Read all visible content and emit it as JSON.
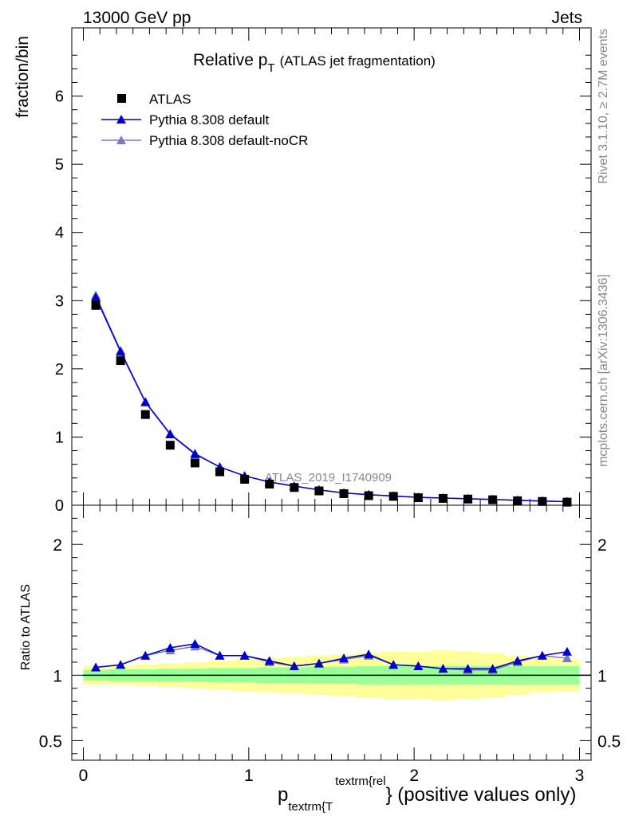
{
  "header": {
    "energy_label": "13000 GeV pp",
    "process_label": "Jets"
  },
  "side_labels": {
    "rivet": "Rivet 3.1.10, ≥ 2.7M events",
    "mcplots": "mcplots.cern.ch [arXiv:1306.3436]"
  },
  "watermark": "ATLAS_2019_I1740909",
  "chart_data": [
    {
      "type": "line",
      "title_main": "Relative p",
      "title_sub": "T",
      "title_rest": "(ATLAS jet fragmentation)",
      "ylabel": "fraction/bin",
      "xlim": [
        -0.07,
        3.07
      ],
      "ylim": [
        0,
        7
      ],
      "y_ticks": [
        0,
        1,
        2,
        3,
        4,
        5,
        6
      ],
      "x": [
        0.075,
        0.225,
        0.375,
        0.525,
        0.675,
        0.825,
        0.975,
        1.125,
        1.275,
        1.425,
        1.575,
        1.725,
        1.875,
        2.025,
        2.175,
        2.325,
        2.475,
        2.625,
        2.775,
        2.925
      ],
      "series": [
        {
          "name": "ATLAS",
          "marker": "square",
          "color": "#000000",
          "values": [
            2.93,
            2.12,
            1.33,
            0.88,
            0.62,
            0.49,
            0.38,
            0.31,
            0.26,
            0.21,
            0.17,
            0.14,
            0.13,
            0.11,
            0.1,
            0.09,
            0.08,
            0.065,
            0.055,
            0.045
          ]
        },
        {
          "name": "Pythia 8.308 default",
          "marker": "triangle",
          "color": "#0000cc",
          "values": [
            3.05,
            2.25,
            1.51,
            1.04,
            0.75,
            0.56,
            0.43,
            0.34,
            0.28,
            0.225,
            0.18,
            0.155,
            0.135,
            0.115,
            0.105,
            0.095,
            0.085,
            0.072,
            0.062,
            0.053
          ]
        },
        {
          "name": "Pythia 8.308 default-noCR",
          "marker": "triangle",
          "color": "#7a7ab8",
          "values": [
            3.08,
            2.27,
            1.52,
            1.05,
            0.76,
            0.56,
            0.43,
            0.34,
            0.28,
            0.225,
            0.18,
            0.155,
            0.135,
            0.115,
            0.105,
            0.095,
            0.085,
            0.072,
            0.062,
            0.053
          ]
        }
      ],
      "legend_position": "top-left"
    },
    {
      "type": "line",
      "ylabel": "Ratio to ATLAS",
      "xlabel_p": "p",
      "xlabel_sub": "textrm{T",
      "xlabel_sup": "textrm{rel",
      "xlabel_rest": "} (positive values only)",
      "xlim": [
        -0.07,
        3.07
      ],
      "ylim": [
        0.35,
        2.3
      ],
      "y_ticks": [
        0.5,
        1,
        2
      ],
      "x_ticks": [
        0,
        1,
        2,
        3
      ],
      "reference_line": 1.0,
      "bands": {
        "stat_color": "#99ff99",
        "total_color": "#ffff99",
        "stat_half_width": [
          0.04,
          0.045,
          0.045,
          0.05,
          0.05,
          0.055,
          0.055,
          0.06,
          0.06,
          0.065,
          0.065,
          0.07,
          0.07,
          0.07,
          0.07,
          0.07,
          0.07,
          0.07,
          0.07,
          0.07
        ],
        "total_half_width": [
          0.07,
          0.07,
          0.08,
          0.09,
          0.1,
          0.11,
          0.12,
          0.13,
          0.14,
          0.15,
          0.16,
          0.17,
          0.18,
          0.18,
          0.19,
          0.18,
          0.17,
          0.15,
          0.13,
          0.12
        ]
      },
      "series": [
        {
          "name": "Pythia 8.308 default",
          "color": "#0000cc",
          "values": [
            1.06,
            1.08,
            1.15,
            1.21,
            1.24,
            1.15,
            1.15,
            1.11,
            1.07,
            1.09,
            1.13,
            1.16,
            1.08,
            1.07,
            1.05,
            1.05,
            1.05,
            1.11,
            1.15,
            1.18
          ]
        },
        {
          "name": "Pythia 8.308 default-noCR",
          "color": "#7a7ab8",
          "values": [
            1.06,
            1.08,
            1.15,
            1.19,
            1.22,
            1.15,
            1.15,
            1.1,
            1.07,
            1.09,
            1.12,
            1.15,
            1.08,
            1.07,
            1.05,
            1.04,
            1.04,
            1.1,
            1.15,
            1.13
          ]
        }
      ]
    }
  ]
}
